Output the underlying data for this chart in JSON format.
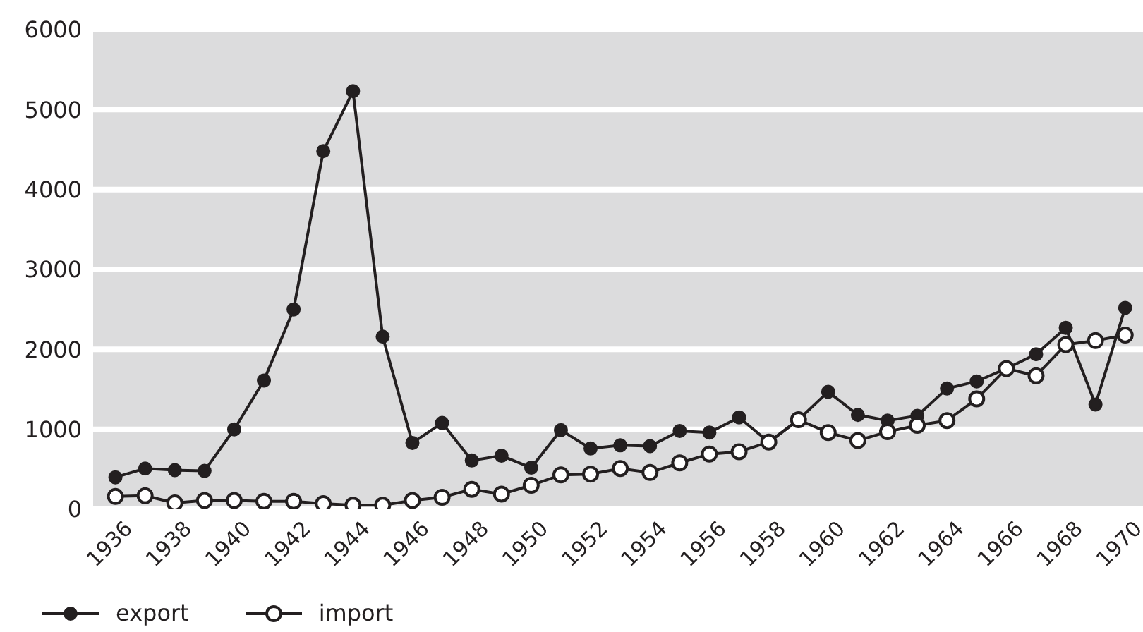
{
  "chart_data": {
    "type": "line",
    "x": [
      1936,
      1937,
      1938,
      1939,
      1940,
      1941,
      1942,
      1943,
      1944,
      1945,
      1946,
      1947,
      1948,
      1949,
      1950,
      1951,
      1952,
      1953,
      1954,
      1955,
      1956,
      1957,
      1958,
      1959,
      1960,
      1961,
      1962,
      1963,
      1964,
      1965,
      1966,
      1967,
      1968,
      1969,
      1970
    ],
    "series": [
      {
        "name": "export",
        "color": "#231f20",
        "values": [
          400,
          510,
          490,
          480,
          1000,
          1610,
          2500,
          4480,
          5230,
          2160,
          830,
          1080,
          610,
          670,
          520,
          990,
          760,
          800,
          790,
          980,
          960,
          1150,
          840,
          1120,
          1470,
          1180,
          1110,
          1170,
          1510,
          1600,
          1760,
          1940,
          2270,
          1310,
          2520
        ]
      },
      {
        "name": "import",
        "color": "#231f20",
        "values": [
          160,
          170,
          80,
          110,
          110,
          100,
          100,
          70,
          50,
          50,
          110,
          150,
          250,
          190,
          300,
          430,
          440,
          510,
          460,
          580,
          690,
          720,
          840,
          1120,
          960,
          860,
          970,
          1050,
          1110,
          1380,
          1760,
          1670,
          2060,
          2110,
          2180
        ]
      }
    ],
    "xlim": [
      1935.25,
      1970.6
    ],
    "xticks": [
      1936,
      1938,
      1940,
      1942,
      1944,
      1946,
      1948,
      1950,
      1952,
      1954,
      1956,
      1958,
      1960,
      1962,
      1964,
      1966,
      1968,
      1970
    ],
    "ylim": [
      0,
      6000
    ],
    "yticks": [
      0,
      1000,
      2000,
      3000,
      4000,
      5000,
      6000
    ],
    "grid": "y",
    "legend": "bottom left",
    "marker": "circle",
    "line_style": "solid"
  }
}
